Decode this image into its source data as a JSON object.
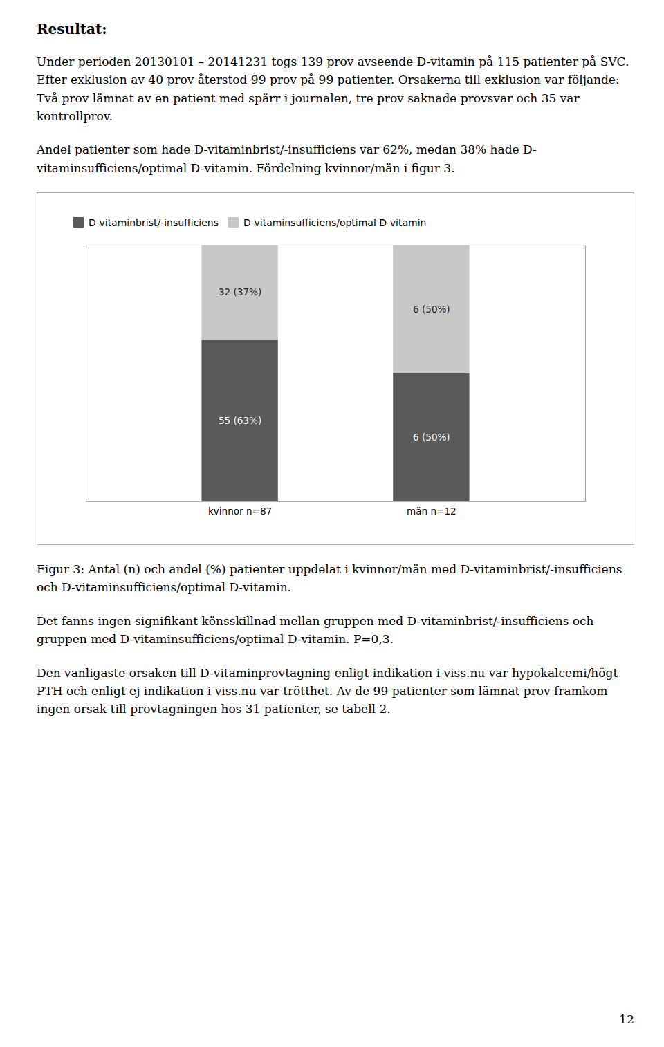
{
  "chart_data": {
    "type": "bar",
    "title": "Resultat:",
    "annotations": [
      "Under perioden 20130101 – 20141231 togs 139 prov avseende D-vitamin på 115 patienter på SVC. Efter exklusion av 40 prov återstod 99 prov på 99 patienter. Orsakerna till exklusion var följande: Två prov lämnat av en patient med spärr i journalen, tre prov saknade provsvar och 35 var kontrollprov.",
      "Andel patienter som hade D-vitaminbrist/-insufficiens var 62%, medan 38% hade D-vitaminsufficiens/optimal D-vitamin. Fördelning kvinnor/män i  figur 3.",
      "Det fanns ingen signifikant könsskillnad mellan gruppen med D-vitaminbrist/-insufficiens och gruppen med D-vitaminsufficiens/optimal D-vitamin. P=0,3.",
      "Den vanligaste orsaken till D-vitaminprovtagning enligt indikation i viss.nu var hypokalcemi/högt PTH och enligt ej indikation i viss.nu var trötthet. Av de 99 patienter som lämnat prov framkom ingen orsak till provtagningen hos 31 patienter, se tabell 2.",
      "12"
    ],
    "caption": "Figur 3: Antal (n) och andel (%) patienter uppdelat i kvinnor/män med D-vitaminbrist/-insufficiens och D-vitaminsufficiens/optimal D-vitamin.",
    "categories": [
      "kvinnor n=87",
      "män n=12"
    ],
    "series": [
      {
        "name": "D-vitaminbrist/-insufficiens",
        "color": "#595959",
        "values": [
          63,
          50
        ],
        "value_labels": [
          "55 (63%)",
          "6 (50%)"
        ]
      },
      {
        "name": "D-vitaminsufficiens/optimal D-vitamin",
        "color": "#c8c8c8",
        "values": [
          37,
          50
        ],
        "value_labels": [
          "32 (37%)",
          "6 (50%)"
        ]
      }
    ],
    "stacked": true,
    "data_labels": true,
    "legend": "top",
    "grid": false,
    "tick_labels": "x",
    "ylim": [
      0,
      100
    ]
  }
}
